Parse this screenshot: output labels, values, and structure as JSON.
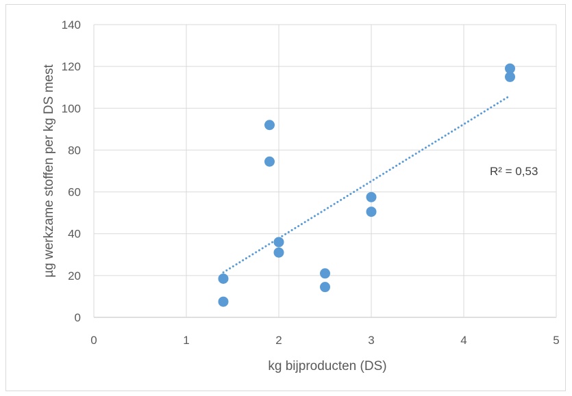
{
  "chart_data": {
    "type": "scatter",
    "title": "",
    "xlabel": "kg bijproducten (DS)",
    "ylabel": "µg werkzame stoffen per kg DS mest",
    "xlim": [
      0,
      5
    ],
    "ylim": [
      0,
      140
    ],
    "x_ticks": [
      0,
      1,
      2,
      3,
      4,
      5
    ],
    "y_ticks": [
      0,
      20,
      40,
      60,
      80,
      100,
      120,
      140
    ],
    "grid": true,
    "legend": "none",
    "series": [
      {
        "marker_color": "#5b9bd5",
        "points": [
          {
            "x": 1.4,
            "y": 18.5
          },
          {
            "x": 1.4,
            "y": 7.5
          },
          {
            "x": 1.9,
            "y": 92
          },
          {
            "x": 1.9,
            "y": 74.5
          },
          {
            "x": 2.0,
            "y": 36
          },
          {
            "x": 2.0,
            "y": 31
          },
          {
            "x": 2.5,
            "y": 21
          },
          {
            "x": 2.5,
            "y": 14.5
          },
          {
            "x": 3.0,
            "y": 57.5
          },
          {
            "x": 3.0,
            "y": 50.5
          },
          {
            "x": 4.5,
            "y": 119
          },
          {
            "x": 4.5,
            "y": 115
          }
        ]
      }
    ],
    "trendline": {
      "style": "dotted",
      "color": "#5b9bd5",
      "x": [
        1.4,
        4.5
      ],
      "y": [
        21.5,
        106
      ]
    },
    "annotation": "R² = 0,53"
  }
}
